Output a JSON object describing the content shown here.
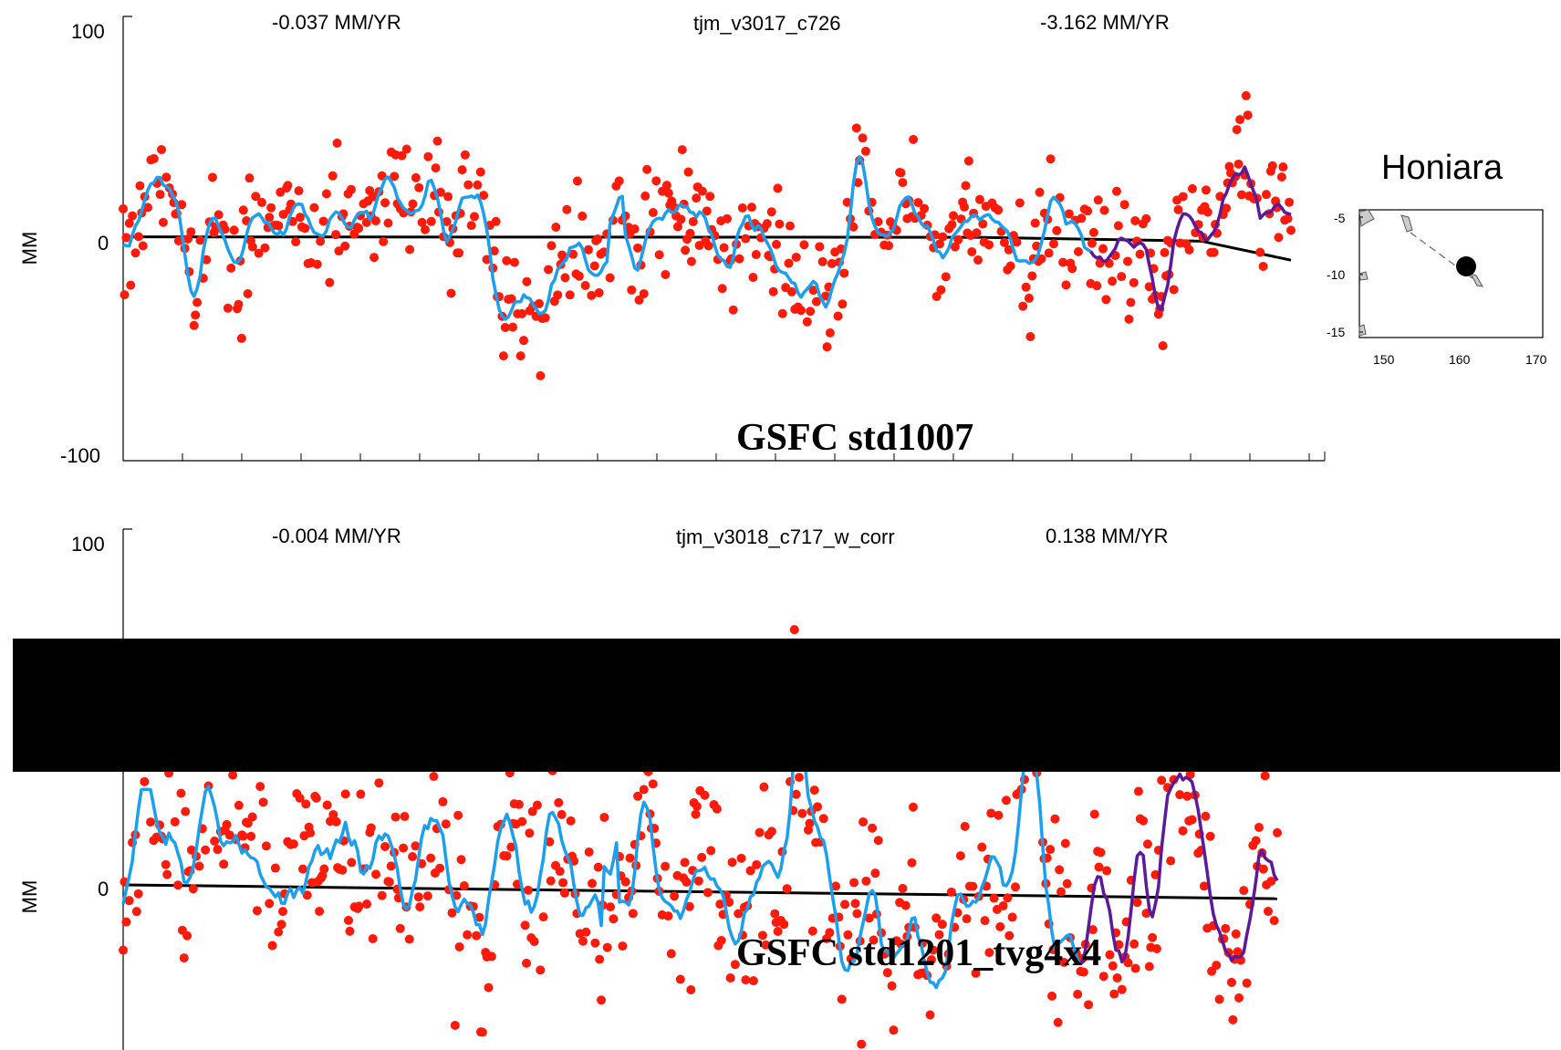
{
  "colors": {
    "points": "#ff1a0a",
    "smooth": "#1aa0ee",
    "recent": "#5a1a9a",
    "trend": "#000000",
    "redaction": "#000000"
  },
  "chart_data": [
    {
      "type": "scatter",
      "title": "tjm_v3017_c726",
      "label": "GSFC std1007",
      "ylabel": "MM",
      "ylim": [
        -100,
        100
      ],
      "yticks": [
        100,
        0,
        -100
      ],
      "rate_left": "-0.037 MM/YR",
      "rate_right": "-3.162 MM/YR",
      "trend": [
        [
          0,
          1.0
        ],
        [
          19,
          0.8
        ],
        [
          24,
          -1.0
        ],
        [
          26,
          -10.0
        ]
      ],
      "series": [
        {
          "role": "anomaly-points",
          "values": []
        },
        {
          "role": "smoothed",
          "values": []
        },
        {
          "role": "recent-smoothed",
          "values": []
        }
      ]
    },
    {
      "type": "scatter",
      "title": "tjm_v3018_c717_w_corr",
      "label": "GSFC std1201_tvg4x4",
      "ylabel": "MM",
      "ylim": [
        -100,
        100
      ],
      "yticks": [
        100,
        0
      ],
      "rate_left": "-0.004 MM/YR",
      "rate_right": "0.138 MM/YR",
      "trend": [
        [
          0,
          0.0
        ],
        [
          26,
          -4.0
        ]
      ],
      "series": [
        {
          "role": "anomaly-points",
          "values": []
        },
        {
          "role": "smoothed",
          "values": []
        },
        {
          "role": "recent-smoothed",
          "values": []
        }
      ]
    }
  ],
  "inset_map": {
    "title": "Honiara",
    "yticks": [
      "-5",
      "-10",
      "-15"
    ],
    "xticks": [
      "150",
      "160",
      "170"
    ],
    "station_lon": 160,
    "station_lat": -9.4
  }
}
